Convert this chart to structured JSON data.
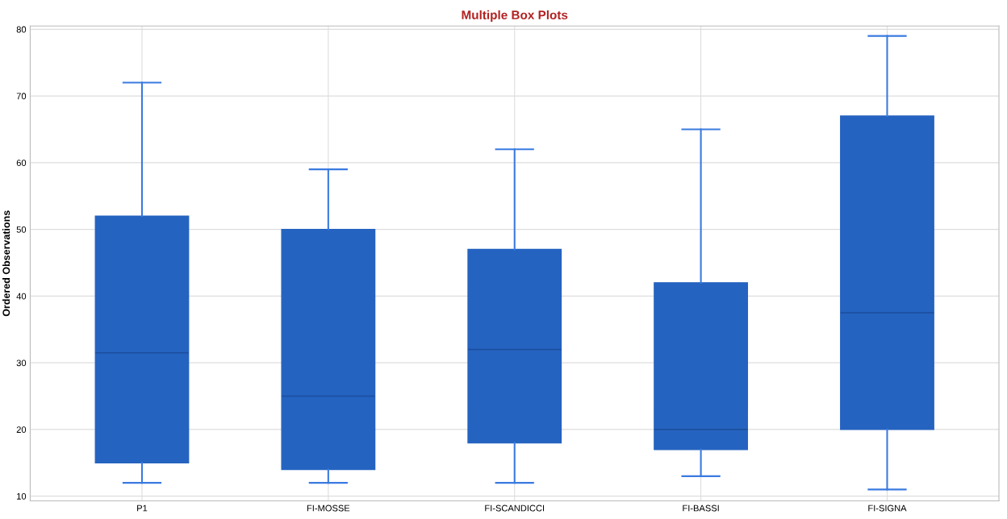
{
  "chart_data": {
    "type": "box",
    "title": "Multiple Box Plots",
    "ylabel": "Ordered Observations",
    "categories": [
      "P1",
      "FI-MOSSE",
      "FI-SCANDICCI",
      "FI-BASSI",
      "FI-SIGNA"
    ],
    "boxes": [
      {
        "low": 12,
        "q1": 15,
        "median": 31.5,
        "q3": 52,
        "high": 72
      },
      {
        "low": 12,
        "q1": 14,
        "median": 25,
        "q3": 50,
        "high": 59
      },
      {
        "low": 12,
        "q1": 18,
        "median": 32,
        "q3": 47,
        "high": 62
      },
      {
        "low": 13,
        "q1": 17,
        "median": 20,
        "q3": 42,
        "high": 65
      },
      {
        "low": 11,
        "q1": 20,
        "median": 37.5,
        "q3": 67,
        "high": 79
      }
    ],
    "color": "#2563c0",
    "ylim": [
      9.3,
      80.5
    ],
    "yticks": [
      10,
      20,
      30,
      40,
      50,
      60,
      70,
      80
    ],
    "grid": true
  }
}
